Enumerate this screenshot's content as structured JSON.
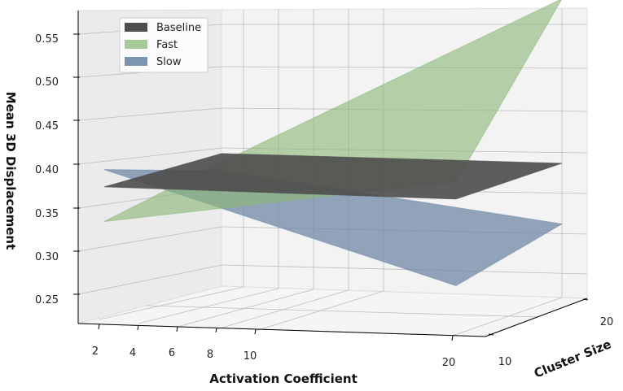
{
  "chart_data": {
    "type": "surface",
    "xlabel": "Activation Coefficient",
    "ylabel": "Cluster Size",
    "zlabel": "Mean 3D Displacement",
    "x_ticks": [
      "2",
      "4",
      "6",
      "8",
      "10",
      "20"
    ],
    "y_ticks": [
      "10",
      "20"
    ],
    "z_ticks": [
      "0.25",
      "0.30",
      "0.35",
      "0.40",
      "0.45",
      "0.50",
      "0.55"
    ],
    "x": [
      2,
      20
    ],
    "y": [
      10,
      20
    ],
    "grid": true,
    "legend_position": "top-left",
    "series": [
      {
        "name": "Baseline",
        "color": "#4d4d4d",
        "opacity": 0.9,
        "z_at_y10": [
          0.38,
          0.38
        ],
        "z_at_y20": [
          0.38,
          0.38
        ]
      },
      {
        "name": "Fast",
        "color": "#8cb878",
        "opacity": 0.62,
        "z_at_y10": [
          0.34,
          0.4
        ],
        "z_at_y20": [
          0.37,
          0.57
        ]
      },
      {
        "name": "Slow",
        "color": "#6f88a6",
        "opacity": 0.75,
        "z_at_y10": [
          0.4,
          0.28
        ],
        "z_at_y20": [
          0.36,
          0.31
        ]
      }
    ]
  }
}
